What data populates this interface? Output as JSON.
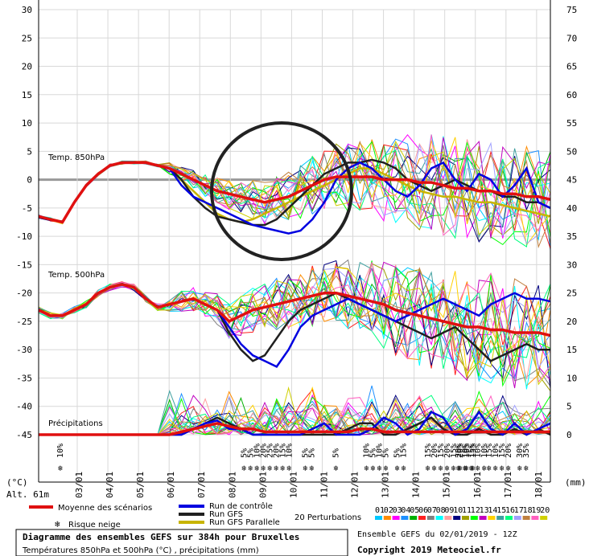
{
  "chart_data": {
    "type": "line",
    "title": "Diagramme des ensembles GEFS sur 384h pour Bruxelles",
    "subtitle": "Températures 850hPa et 500hPa (°C) , précipitations (mm)",
    "run_info": "Ensemble GEFS du 02/01/2019 - 12Z",
    "copyright": "Copyright 2019 Meteociel.fr",
    "altitude": "Alt. 61m",
    "left_unit": "(°C)",
    "right_unit": "(mm)",
    "left_ticks": [
      30,
      25,
      20,
      15,
      10,
      5,
      0,
      -5,
      -10,
      -15,
      -20,
      -25,
      -30,
      -35,
      -40,
      -45
    ],
    "right_ticks": [
      75,
      70,
      65,
      60,
      55,
      50,
      45,
      40,
      35,
      30,
      25,
      20,
      15,
      10,
      5,
      0
    ],
    "x_labels": [
      "03/01",
      "04/01",
      "05/01",
      "06/01",
      "07/01",
      "08/01",
      "09/01",
      "10/01",
      "11/01",
      "12/01",
      "13/01",
      "14/01",
      "15/01",
      "16/01",
      "17/01",
      "18/01"
    ],
    "panel_labels": {
      "t850": "Temp. 850hPa",
      "t500": "Temp. 500hPa",
      "precip": "Précipitations"
    },
    "legend": {
      "mean": "Moyenne des scénarios",
      "control": "Run de contrôle",
      "gfs": "Run GFS",
      "gfs_par": "Run GFS Parallele",
      "perturb": "20 Perturbations",
      "snow": "Risque neige"
    },
    "perturb_ids": [
      "01",
      "02",
      "03",
      "04",
      "05",
      "06",
      "07",
      "08",
      "09",
      "10",
      "11",
      "12",
      "13",
      "14",
      "15",
      "16",
      "17",
      "18",
      "19",
      "20"
    ],
    "perturb_colors": [
      "#00c8ff",
      "#ff8c00",
      "#ff00ff",
      "#1e90ff",
      "#00b000",
      "#ff2020",
      "#808080",
      "#00ffff",
      "#ffa0a0",
      "#000080",
      "#a0a000",
      "#00ff00",
      "#c000c0",
      "#ffd000",
      "#40a0a0",
      "#00ff80",
      "#a0a0ff",
      "#c08040",
      "#ff60c0",
      "#d0d000"
    ],
    "series_colors": {
      "mean": "#e01010",
      "control": "#0000e0",
      "gfs": "#202020",
      "gfs_par": "#c8b400"
    },
    "snow_markers": [
      {
        "day": "03/01",
        "pct": [
          "10%"
        ]
      },
      {
        "day": "09/01",
        "pct": [
          "5%",
          "5%",
          "10%",
          "20%",
          "25%",
          "20%",
          "15%",
          "10%"
        ]
      },
      {
        "day": "11/01",
        "pct": [
          "5%",
          "5%"
        ]
      },
      {
        "day": "12/01",
        "pct": [
          "5%"
        ]
      },
      {
        "day": "13/01",
        "pct": [
          "10%",
          "5%",
          "10%",
          "5%"
        ]
      },
      {
        "day": "14/01",
        "pct": [
          "5%",
          "15%"
        ]
      },
      {
        "day": "15/01",
        "pct": [
          "15%",
          "20%",
          "15%",
          "20%",
          "15%",
          "20%",
          "10%",
          "15%"
        ]
      },
      {
        "day": "16/01",
        "pct": [
          "20%",
          "10%",
          "15%",
          "10%",
          "10%"
        ]
      },
      {
        "day": "17/01",
        "pct": [
          "15%",
          "10%",
          "15%",
          "20%"
        ]
      },
      {
        "day": "18/01",
        "pct": [
          "30%",
          "35%"
        ]
      }
    ],
    "mean_t850": [
      -6.5,
      -7,
      -7.5,
      -4,
      -1,
      1,
      2.5,
      3,
      3,
      3,
      2.5,
      2,
      1,
      0,
      -1,
      -2,
      -2.5,
      -3,
      -3.5,
      -4,
      -3.5,
      -3,
      -2,
      -1,
      0,
      0.5,
      0.5,
      0.5,
      0.5,
      0,
      0,
      0,
      -0.5,
      -0.5,
      -1,
      -1.5,
      -1.5,
      -2,
      -2,
      -2.5,
      -2.5,
      -3,
      -3,
      -3.5
    ],
    "control_t850": [
      -6.5,
      -7,
      -7.5,
      -4,
      -1,
      1,
      2.5,
      3,
      3,
      3,
      2.5,
      2,
      -1,
      -3,
      -4,
      -5,
      -6,
      -7,
      -8,
      -8.5,
      -9,
      -9.5,
      -9,
      -7,
      -4,
      0,
      2,
      3,
      2,
      0,
      -2,
      -3,
      -1,
      2,
      3,
      0,
      -2,
      1,
      0,
      -3,
      -1,
      2,
      -4,
      -5
    ],
    "gfs_t850": [
      -6.5,
      -7,
      -7.5,
      -4,
      -1,
      1,
      2.5,
      3,
      3,
      3,
      2.5,
      2,
      0,
      -3,
      -5,
      -6.5,
      -7,
      -7.5,
      -8,
      -8,
      -7,
      -5,
      -3,
      -1,
      1,
      2,
      3,
      3,
      3.5,
      3,
      2,
      0,
      -1,
      -2,
      -1,
      0,
      -1,
      -2,
      -2,
      -3,
      -3,
      -4,
      -4,
      -5
    ],
    "gfs_par_t850": [
      -6.5,
      -7,
      -7.5,
      -4,
      -1,
      1,
      2.5,
      3,
      3,
      3,
      2.5,
      2,
      0,
      -2,
      -4,
      -6,
      -7,
      -7.5,
      -7,
      -6,
      -5,
      -4,
      -3,
      -2,
      -1,
      0,
      1,
      2,
      2,
      1,
      0,
      -1,
      -2,
      -2.5,
      -3,
      -3,
      -3.5,
      -4,
      -4,
      -4.5,
      -5,
      -5.5,
      -6,
      -6.5
    ],
    "mean_t500": [
      -23,
      -24,
      -24,
      -23,
      -22,
      -20,
      -19,
      -18.5,
      -19,
      -21,
      -22.5,
      -22,
      -21.5,
      -21,
      -22,
      -23,
      -25,
      -24,
      -23,
      -22.5,
      -22,
      -21.5,
      -21,
      -20.5,
      -20,
      -20,
      -20.5,
      -21,
      -21.5,
      -22,
      -23,
      -23.5,
      -24,
      -24.5,
      -25,
      -25.5,
      -26,
      -26,
      -26.5,
      -26.5,
      -27,
      -27,
      -27,
      -27.5
    ],
    "control_t500": [
      -23,
      -24,
      -24,
      -23,
      -22,
      -20,
      -19,
      -18.5,
      -19,
      -21,
      -22.5,
      -22,
      -21.5,
      -21,
      -22,
      -23,
      -26,
      -29,
      -31,
      -32,
      -33,
      -30,
      -26,
      -24,
      -23,
      -22,
      -21,
      -22,
      -23,
      -24,
      -25,
      -24,
      -23,
      -22,
      -21,
      -22,
      -23,
      -24,
      -22,
      -21,
      -20,
      -21,
      -21,
      -21.5
    ],
    "gfs_t500": [
      -23,
      -24,
      -24,
      -23,
      -22,
      -20,
      -19,
      -18.5,
      -19,
      -21,
      -22.5,
      -22,
      -21.5,
      -21,
      -22,
      -23,
      -27,
      -30,
      -32,
      -31,
      -28,
      -25,
      -23,
      -22,
      -21,
      -20,
      -21,
      -22,
      -23,
      -24,
      -25,
      -26,
      -27,
      -28,
      -27,
      -26,
      -28,
      -30,
      -32,
      -31,
      -30,
      -29,
      -30,
      -30
    ],
    "mean_precip": [
      -45,
      -45,
      -45,
      -45,
      -45,
      -45,
      -45,
      -45,
      -45,
      -45,
      -45,
      -45,
      -44.5,
      -44,
      -43.5,
      -43,
      -43.5,
      -44,
      -44,
      -44.5,
      -44.5,
      -44.5,
      -44.5,
      -44.5,
      -44.5,
      -44.5,
      -44.5,
      -44,
      -44,
      -44.5,
      -44.5,
      -44.5,
      -44.5,
      -44.5,
      -44.5,
      -44.5,
      -44.5,
      -44.5,
      -44.5,
      -44.5,
      -44.5,
      -44.5,
      -44.5,
      -44.5
    ],
    "control_precip": [
      -45,
      -45,
      -45,
      -45,
      -45,
      -45,
      -45,
      -45,
      -45,
      -45,
      -45,
      -45,
      -45,
      -44,
      -43,
      -42.5,
      -44,
      -44,
      -45,
      -45,
      -45,
      -45,
      -45,
      -44,
      -43,
      -45,
      -45,
      -45,
      -44,
      -42,
      -43,
      -45,
      -44,
      -41,
      -42,
      -45,
      -44,
      -41,
      -44,
      -45,
      -43,
      -45,
      -44,
      -43
    ],
    "gfs_precip": [
      -45,
      -45,
      -45,
      -45,
      -45,
      -45,
      -45,
      -45,
      -45,
      -45,
      -45,
      -45,
      -45,
      -44,
      -43,
      -42,
      -43,
      -44,
      -45,
      -45,
      -45,
      -45,
      -45,
      -45,
      -45,
      -45,
      -44,
      -43,
      -43,
      -45,
      -45,
      -44,
      -43,
      -42,
      -44,
      -45,
      -45,
      -44,
      -45,
      -45,
      -44,
      -45,
      -44,
      -45
    ],
    "ylim_left": [
      -45,
      30
    ],
    "ylim_right": [
      0,
      75
    ],
    "grid": true,
    "highlight_circle": true
  }
}
